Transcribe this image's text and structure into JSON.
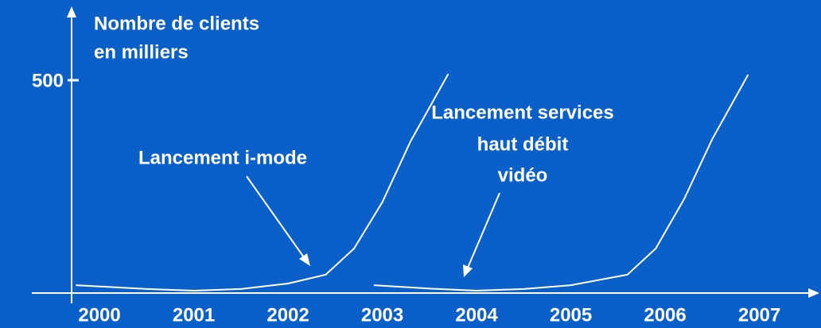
{
  "chart_data": {
    "type": "line",
    "y_axis_label": [
      "Nombre de clients",
      "en milliers"
    ],
    "xlim": [
      1999.7,
      2007.3
    ],
    "xticks": [
      2000,
      2001,
      2002,
      2003,
      2004,
      2005,
      2006,
      2007
    ],
    "ylim": [
      0,
      500
    ],
    "yticks": [
      500
    ],
    "series": [
      {
        "color": "#ffffff",
        "x": [
          1999.75,
          2000.5,
          2001,
          2001.5,
          2002,
          2002.4,
          2002.7,
          2003,
          2003.3,
          2003.7
        ],
        "values": [
          13,
          4,
          0,
          4,
          17,
          38,
          100,
          210,
          355,
          515
        ]
      },
      {
        "color": "#ffffff",
        "x": [
          2002.91,
          2003.5,
          2004,
          2004.5,
          2005,
          2005.6,
          2005.9,
          2006.2,
          2006.5,
          2006.88
        ],
        "values": [
          13,
          5,
          0,
          4,
          13,
          38,
          100,
          217,
          360,
          513
        ]
      }
    ],
    "annotations": [
      {
        "lines": [
          "Lancement i-mode"
        ]
      },
      {
        "lines": [
          "Lancement services",
          "haut débit",
          "vidéo"
        ]
      }
    ]
  }
}
